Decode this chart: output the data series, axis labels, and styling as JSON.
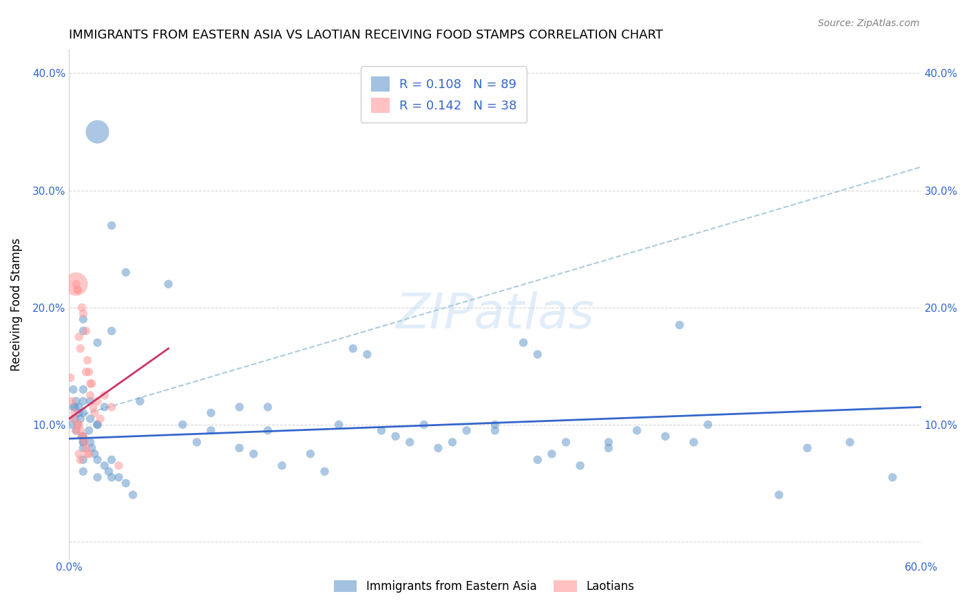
{
  "title": "IMMIGRANTS FROM EASTERN ASIA VS LAOTIAN RECEIVING FOOD STAMPS CORRELATION CHART",
  "source": "Source: ZipAtlas.com",
  "ylabel": "Receiving Food Stamps",
  "y_ticks": [
    0.0,
    0.1,
    0.2,
    0.3,
    0.4
  ],
  "y_tick_labels": [
    "",
    "10.0%",
    "20.0%",
    "30.0%",
    "40.0%"
  ],
  "x_lim": [
    0.0,
    0.6
  ],
  "y_lim": [
    -0.015,
    0.42
  ],
  "legend1_R": "0.108",
  "legend1_N": "89",
  "legend2_R": "0.142",
  "legend2_N": "38",
  "blue_color": "#6699CC",
  "pink_color": "#FF9999",
  "blue_line_color": "#3366CC",
  "pink_line_color": "#CC3366",
  "blue_dashed_color": "#AACCDD",
  "watermark": "ZIPatlas",
  "blue_scatter_x": [
    0.02,
    0.03,
    0.04,
    0.01,
    0.01,
    0.02,
    0.03,
    0.01,
    0.01,
    0.015,
    0.025,
    0.01,
    0.02,
    0.02,
    0.015,
    0.01,
    0.01,
    0.01,
    0.01,
    0.03,
    0.01,
    0.02,
    0.07,
    0.05,
    0.08,
    0.1,
    0.12,
    0.1,
    0.09,
    0.14,
    0.14,
    0.12,
    0.13,
    0.17,
    0.15,
    0.18,
    0.2,
    0.19,
    0.21,
    0.22,
    0.25,
    0.24,
    0.23,
    0.27,
    0.26,
    0.28,
    0.3,
    0.32,
    0.33,
    0.3,
    0.35,
    0.34,
    0.33,
    0.36,
    0.38,
    0.38,
    0.4,
    0.42,
    0.43,
    0.45,
    0.44,
    0.5,
    0.52,
    0.55,
    0.58,
    0.005,
    0.003,
    0.003,
    0.007,
    0.004,
    0.004,
    0.002,
    0.005,
    0.006,
    0.007,
    0.008,
    0.009,
    0.01,
    0.014,
    0.015,
    0.016,
    0.018,
    0.02,
    0.025,
    0.028,
    0.03,
    0.035,
    0.04,
    0.045
  ],
  "blue_scatter_y": [
    0.35,
    0.27,
    0.23,
    0.19,
    0.18,
    0.17,
    0.18,
    0.13,
    0.12,
    0.12,
    0.115,
    0.11,
    0.1,
    0.1,
    0.105,
    0.09,
    0.085,
    0.08,
    0.07,
    0.07,
    0.06,
    0.055,
    0.22,
    0.12,
    0.1,
    0.11,
    0.115,
    0.095,
    0.085,
    0.115,
    0.095,
    0.08,
    0.075,
    0.075,
    0.065,
    0.06,
    0.165,
    0.1,
    0.16,
    0.095,
    0.1,
    0.085,
    0.09,
    0.085,
    0.08,
    0.095,
    0.1,
    0.17,
    0.16,
    0.095,
    0.085,
    0.075,
    0.07,
    0.065,
    0.08,
    0.085,
    0.095,
    0.09,
    0.185,
    0.1,
    0.085,
    0.04,
    0.08,
    0.085,
    0.055,
    0.12,
    0.13,
    0.115,
    0.11,
    0.115,
    0.105,
    0.1,
    0.095,
    0.1,
    0.115,
    0.105,
    0.09,
    0.085,
    0.095,
    0.085,
    0.08,
    0.075,
    0.07,
    0.065,
    0.06,
    0.055,
    0.055,
    0.05,
    0.04
  ],
  "blue_scatter_size": [
    600,
    80,
    80,
    80,
    80,
    80,
    80,
    80,
    80,
    80,
    80,
    80,
    80,
    80,
    80,
    80,
    80,
    80,
    80,
    80,
    80,
    80,
    80,
    80,
    80,
    80,
    80,
    80,
    80,
    80,
    80,
    80,
    80,
    80,
    80,
    80,
    80,
    80,
    80,
    80,
    80,
    80,
    80,
    80,
    80,
    80,
    80,
    80,
    80,
    80,
    80,
    80,
    80,
    80,
    80,
    80,
    80,
    80,
    80,
    80,
    80,
    80,
    80,
    80,
    80,
    80,
    80,
    80,
    80,
    80,
    80,
    80,
    80,
    80,
    80,
    80,
    80,
    80,
    80,
    80,
    80,
    80,
    80,
    80,
    80,
    80,
    80,
    80,
    80
  ],
  "pink_scatter_x": [
    0.005,
    0.006,
    0.007,
    0.008,
    0.009,
    0.01,
    0.012,
    0.012,
    0.013,
    0.014,
    0.015,
    0.015,
    0.016,
    0.017,
    0.018,
    0.02,
    0.022,
    0.025,
    0.03,
    0.035,
    0.001,
    0.002,
    0.003,
    0.004,
    0.005,
    0.006,
    0.007,
    0.008,
    0.009,
    0.01,
    0.011,
    0.012,
    0.013,
    0.014,
    0.005,
    0.006,
    0.007,
    0.008
  ],
  "pink_scatter_y": [
    0.22,
    0.215,
    0.175,
    0.165,
    0.2,
    0.195,
    0.18,
    0.145,
    0.155,
    0.145,
    0.125,
    0.135,
    0.135,
    0.115,
    0.11,
    0.12,
    0.105,
    0.125,
    0.115,
    0.065,
    0.14,
    0.12,
    0.105,
    0.11,
    0.095,
    0.1,
    0.1,
    0.095,
    0.09,
    0.09,
    0.085,
    0.08,
    0.075,
    0.075,
    0.22,
    0.215,
    0.075,
    0.07
  ],
  "pink_scatter_size": [
    600,
    80,
    80,
    80,
    80,
    80,
    80,
    80,
    80,
    80,
    80,
    80,
    80,
    80,
    80,
    80,
    80,
    80,
    80,
    80,
    80,
    80,
    80,
    80,
    80,
    80,
    80,
    80,
    80,
    80,
    80,
    80,
    80,
    80,
    80,
    80,
    80,
    80
  ]
}
